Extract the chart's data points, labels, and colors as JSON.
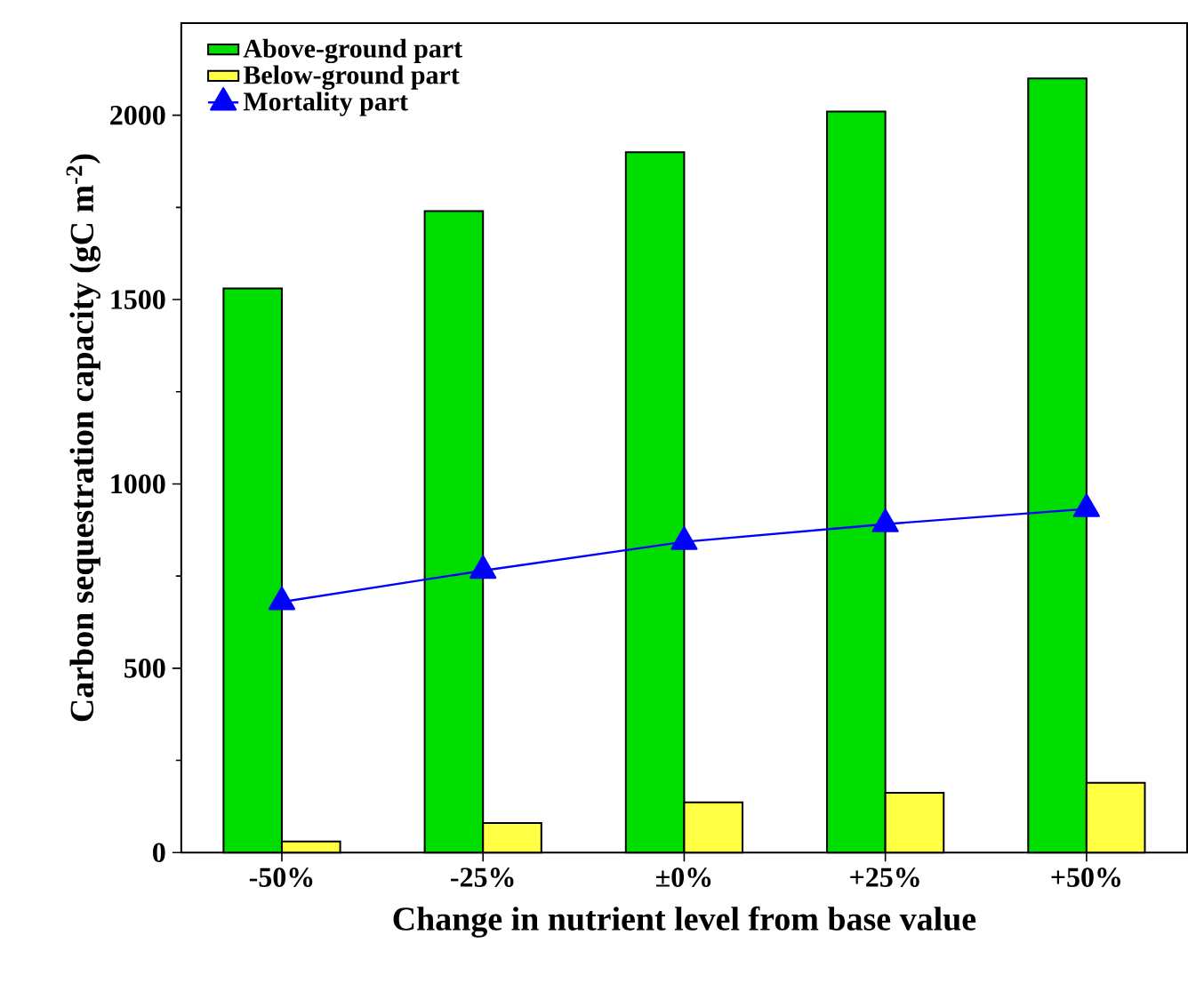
{
  "chart_data": {
    "type": "bar",
    "xlabel": "Change in nutrient level from base value",
    "ylabel": "Carbon sequestration capacity (gC m$^{-2}$)",
    "categories": [
      "-50%",
      "-25%",
      "±0%",
      "+25%",
      "+50%"
    ],
    "series": [
      {
        "name": "Above-ground part",
        "color": "#00dd00",
        "values": [
          1530,
          1740,
          1900,
          2010,
          2100
        ]
      },
      {
        "name": "Below-ground part",
        "color": "#ffff44",
        "values": [
          30,
          80,
          136,
          162,
          189
        ]
      },
      {
        "name": "Mortality part",
        "type": "line",
        "marker": "triangle",
        "color": "#0000ff",
        "values": [
          680,
          765,
          843,
          891,
          932
        ]
      }
    ],
    "ylim": [
      0,
      2250
    ],
    "yticks": [
      0,
      500,
      1000,
      1500,
      2000
    ],
    "legend": "top left"
  }
}
